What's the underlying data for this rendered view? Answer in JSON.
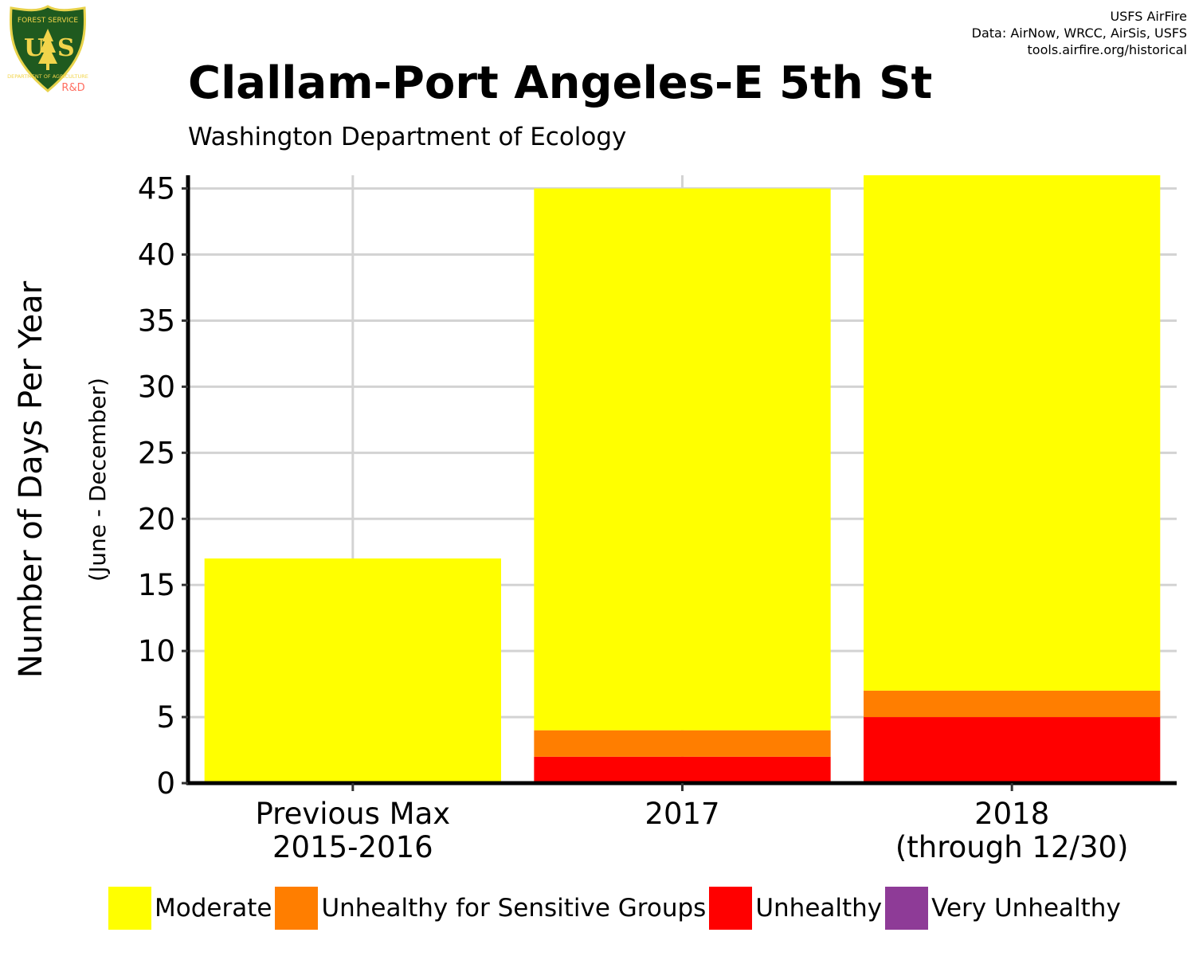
{
  "logo": {
    "top_text": "FOREST SERVICE",
    "letters": "US",
    "bottom_text": "DEPARTMENT OF AGRICULTURE",
    "rd": "R&D",
    "colors": {
      "shield": "#1f5a1f",
      "border": "#e8d24a",
      "text": "#f2d44b",
      "rd": "#ff6f61"
    }
  },
  "credits": [
    "USFS AirFire",
    "Data: AirNow, WRCC, AirSis, USFS",
    "tools.airfire.org/historical"
  ],
  "title": "Clallam-Port Angeles-E 5th St",
  "subtitle": "Washington Department of Ecology",
  "chart_data": {
    "type": "bar",
    "stacked": true,
    "title": "Clallam-Port Angeles-E 5th St",
    "subtitle": "Washington Department of Ecology",
    "ylabel": "Number of Days Per Year",
    "ylabel_sub": "(June - December)",
    "xlabel": "",
    "ylim": [
      0,
      46
    ],
    "yticks": [
      0,
      5,
      10,
      15,
      20,
      25,
      30,
      35,
      40,
      45
    ],
    "grid": true,
    "legend_position": "bottom",
    "categories": [
      [
        "Previous Max",
        "2015-2016"
      ],
      [
        "2017"
      ],
      [
        "2018",
        "(through 12/30)"
      ]
    ],
    "series": [
      {
        "name": "Very Unhealthy",
        "color": "#8e3b97",
        "values": [
          0,
          0,
          0
        ]
      },
      {
        "name": "Unhealthy",
        "color": "#ff0000",
        "values": [
          0,
          2,
          5
        ]
      },
      {
        "name": "Unhealthy for Sensitive Groups",
        "color": "#ff7e00",
        "values": [
          0,
          2,
          2
        ]
      },
      {
        "name": "Moderate",
        "color": "#ffff00",
        "values": [
          17,
          41,
          39
        ]
      }
    ]
  },
  "legend": [
    {
      "label": "Moderate",
      "color": "#ffff00"
    },
    {
      "label": "Unhealthy for Sensitive Groups",
      "color": "#ff7e00"
    },
    {
      "label": "Unhealthy",
      "color": "#ff0000"
    },
    {
      "label": "Very Unhealthy",
      "color": "#8e3b97"
    }
  ]
}
